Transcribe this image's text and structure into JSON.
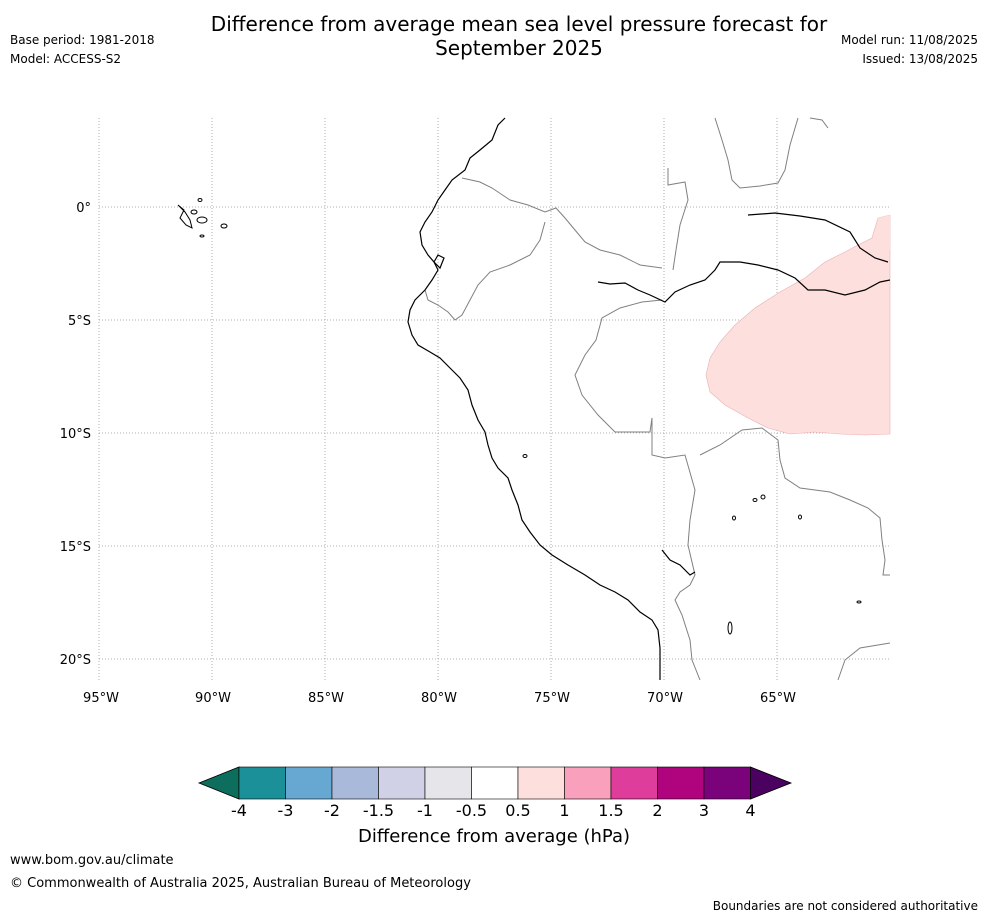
{
  "header": {
    "title_line1": "Difference from average mean sea level pressure forecast for",
    "title_line2": "September 2025",
    "base_period": "Base period: 1981-2018",
    "model": "Model: ACCESS-S2",
    "model_run": "Model run: 11/08/2025",
    "issued": "Issued: 13/08/2025"
  },
  "axes": {
    "lat_labels": [
      "0°",
      "5°S",
      "10°S",
      "15°S",
      "20°S"
    ],
    "lon_labels": [
      "95°W",
      "90°W",
      "85°W",
      "80°W",
      "75°W",
      "70°W",
      "65°W"
    ]
  },
  "colorbar": {
    "title": "Difference from average (hPa)",
    "tick_labels": [
      "-4",
      "-3",
      "-2",
      "-1.5",
      "-1",
      "-0.5",
      "0.5",
      "1",
      "1.5",
      "2",
      "3",
      "4"
    ],
    "colors": {
      "below_min": "#0d6e5e",
      "bins": [
        "#1b9098",
        "#66a8d2",
        "#a8b9da",
        "#d0d1e6",
        "#e6e6ea",
        "#ffffff",
        "#fde0de",
        "#f8a0bc",
        "#de3d9b",
        "#b0037e",
        "#7a027a"
      ],
      "above_max": "#4a0160"
    }
  },
  "map": {
    "positive_anomaly_color": "#fde0de",
    "coastline_color": "#000000",
    "border_color": "#808080",
    "gridline_color": "#999999"
  },
  "footer": {
    "url": "www.bom.gov.au/climate",
    "copyright": "© Commonwealth of Australia 2025, Australian Bureau of Meteorology",
    "note": "Boundaries are not considered authoritative"
  }
}
